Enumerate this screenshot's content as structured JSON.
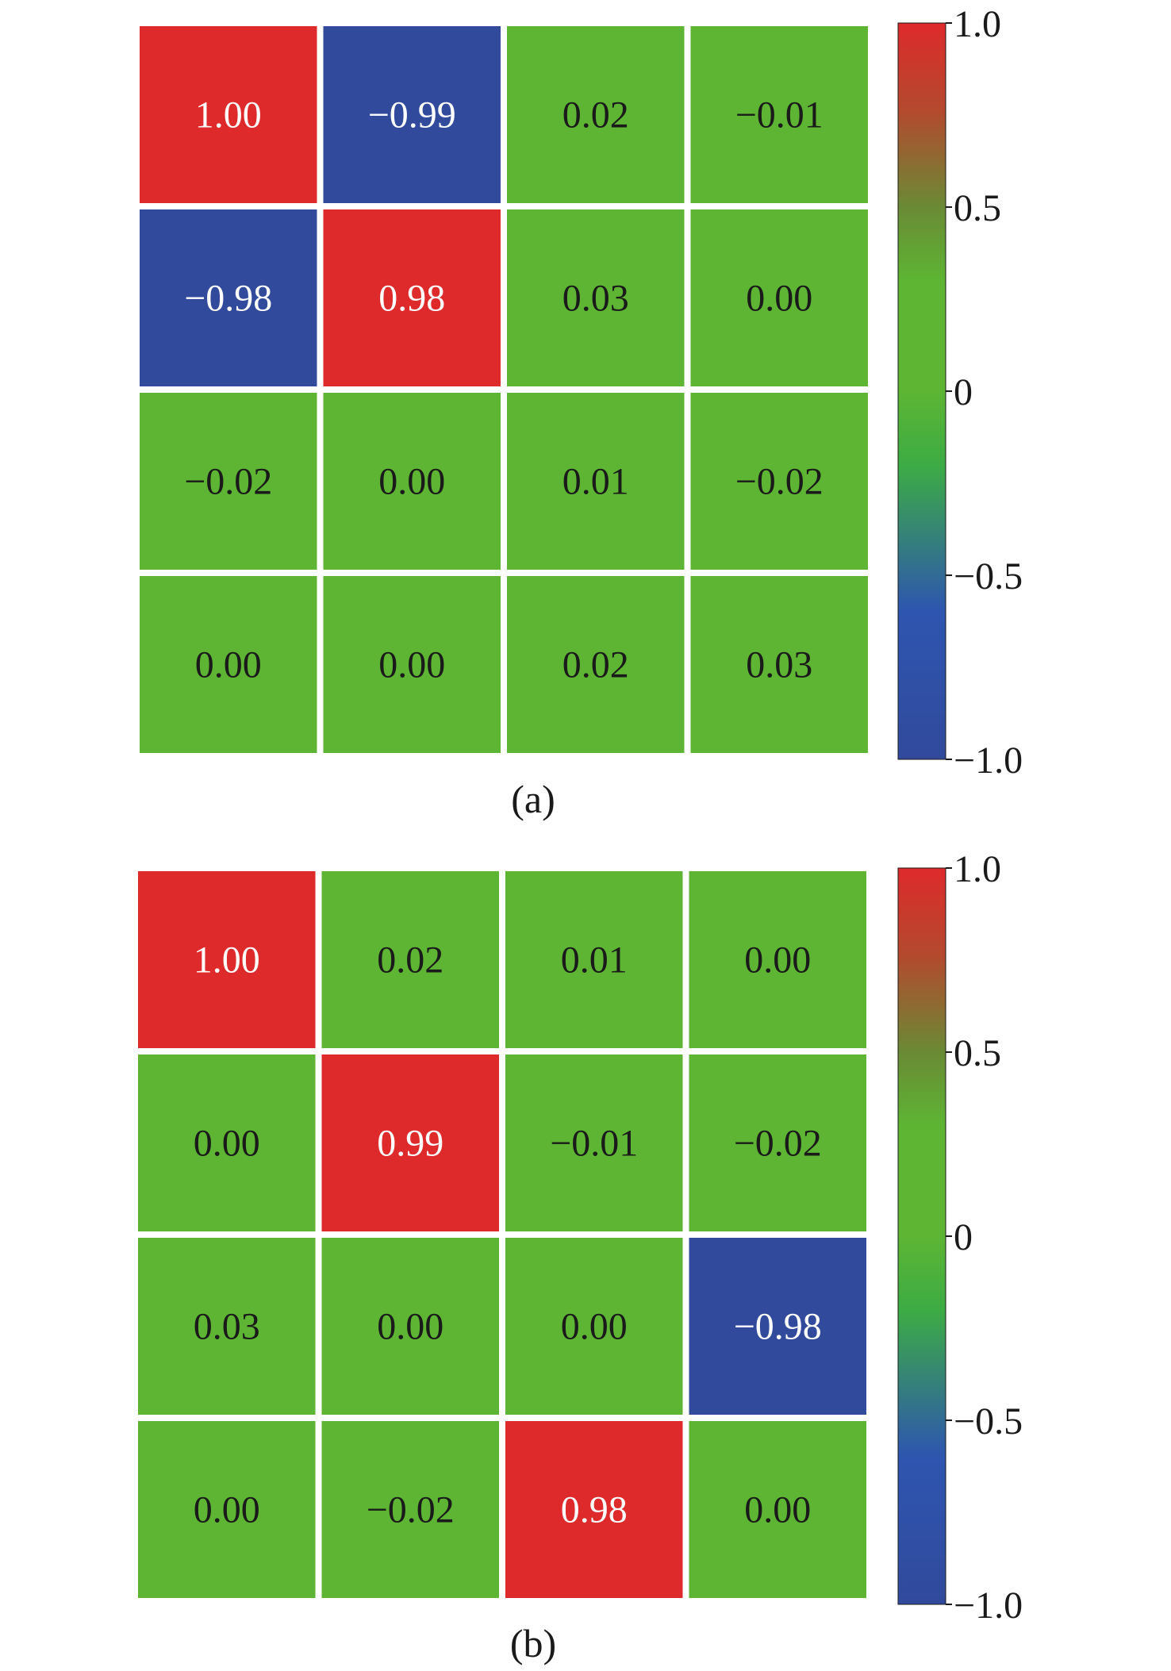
{
  "colors": {
    "red": "#de2a2b",
    "green": "#5db533",
    "blue": "#314a9c",
    "light_text": "#ffffff",
    "dark_text": "#1a1a1a"
  },
  "chart_data": [
    {
      "type": "heatmap",
      "label": "(a)",
      "rows": 4,
      "cols": 4,
      "values": [
        [
          1.0,
          -0.99,
          0.02,
          -0.01
        ],
        [
          -0.98,
          0.98,
          0.03,
          0.0
        ],
        [
          -0.02,
          0.0,
          0.01,
          -0.02
        ],
        [
          0.0,
          0.0,
          0.02,
          0.03
        ]
      ],
      "value_labels": [
        [
          "1.00",
          "−0.99",
          "0.02",
          "−0.01"
        ],
        [
          "−0.98",
          "0.98",
          "0.03",
          "0.00"
        ],
        [
          "−0.02",
          "0.00",
          "0.01",
          "−0.02"
        ],
        [
          "0.00",
          "0.00",
          "0.02",
          "0.03"
        ]
      ],
      "colorbar": {
        "range": [
          -1.0,
          1.0
        ],
        "ticks": [
          1.0,
          0.5,
          0,
          -0.5,
          -1.0
        ],
        "tick_labels": [
          "1.0",
          "0.5",
          "0",
          "−0.5",
          "−1.0"
        ],
        "colors": [
          "#314a9c",
          "#5db533",
          "#de2a2b"
        ]
      }
    },
    {
      "type": "heatmap",
      "label": "(b)",
      "rows": 4,
      "cols": 4,
      "values": [
        [
          1.0,
          0.02,
          0.01,
          0.0
        ],
        [
          0.0,
          0.99,
          -0.01,
          -0.02
        ],
        [
          0.03,
          0.0,
          0.0,
          -0.98
        ],
        [
          0.0,
          -0.02,
          0.98,
          0.0
        ]
      ],
      "value_labels": [
        [
          "1.00",
          "0.02",
          "0.01",
          "0.00"
        ],
        [
          "0.00",
          "0.99",
          "−0.01",
          "−0.02"
        ],
        [
          "0.03",
          "0.00",
          "0.00",
          "−0.98"
        ],
        [
          "0.00",
          "−0.02",
          "0.98",
          "0.00"
        ]
      ],
      "colorbar": {
        "range": [
          -1.0,
          1.0
        ],
        "ticks": [
          1.0,
          0.5,
          0,
          -0.5,
          -1.0
        ],
        "tick_labels": [
          "1.0",
          "0.5",
          "0",
          "−0.5",
          "−1.0"
        ],
        "colors": [
          "#314a9c",
          "#5db533",
          "#de2a2b"
        ]
      }
    }
  ]
}
